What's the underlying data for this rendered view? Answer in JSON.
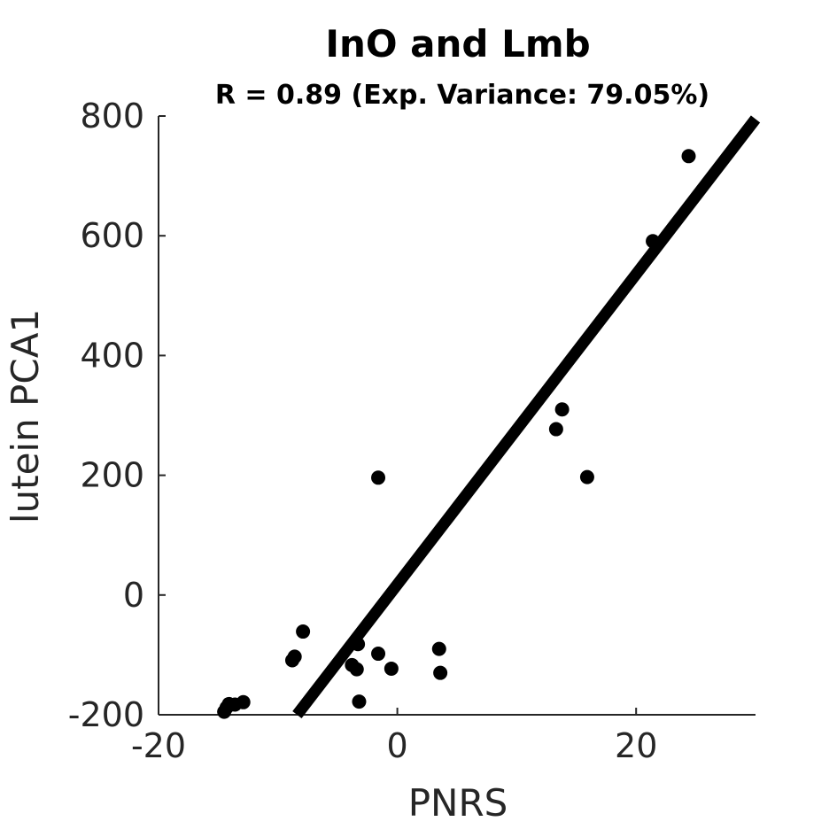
{
  "chart_data": {
    "type": "scatter",
    "title": "InO and Lmb",
    "subtitle": "R = 0.89 (Exp. Variance: 79.05%)",
    "xlabel": "PNRS",
    "ylabel": "lutein PCA1",
    "xlim": [
      -20,
      30
    ],
    "ylim": [
      -200,
      800
    ],
    "xticks": [
      -20,
      0,
      20
    ],
    "yticks": [
      -200,
      0,
      200,
      400,
      600,
      800
    ],
    "grid": false,
    "legend": "none",
    "colors": {
      "points": "#000000",
      "line": "#000000",
      "axes": "#262626"
    },
    "points": [
      {
        "x": -14.5,
        "y": -195
      },
      {
        "x": -14.3,
        "y": -188
      },
      {
        "x": -14.1,
        "y": -182
      },
      {
        "x": -13.6,
        "y": -183
      },
      {
        "x": -12.9,
        "y": -179
      },
      {
        "x": -8.8,
        "y": -109
      },
      {
        "x": -8.6,
        "y": -103
      },
      {
        "x": -7.9,
        "y": -61
      },
      {
        "x": -3.8,
        "y": -117
      },
      {
        "x": -3.4,
        "y": -124
      },
      {
        "x": -3.3,
        "y": -82
      },
      {
        "x": -3.2,
        "y": -178
      },
      {
        "x": -1.6,
        "y": -98
      },
      {
        "x": -1.6,
        "y": 196
      },
      {
        "x": -0.5,
        "y": -123
      },
      {
        "x": 3.5,
        "y": -90
      },
      {
        "x": 3.6,
        "y": -130
      },
      {
        "x": 13.3,
        "y": 277
      },
      {
        "x": 13.8,
        "y": 310
      },
      {
        "x": 15.9,
        "y": 197
      },
      {
        "x": 21.4,
        "y": 591
      },
      {
        "x": 24.4,
        "y": 733
      }
    ],
    "fit_line": {
      "x": [
        -8.4,
        30
      ],
      "y": [
        -200,
        795
      ]
    }
  }
}
